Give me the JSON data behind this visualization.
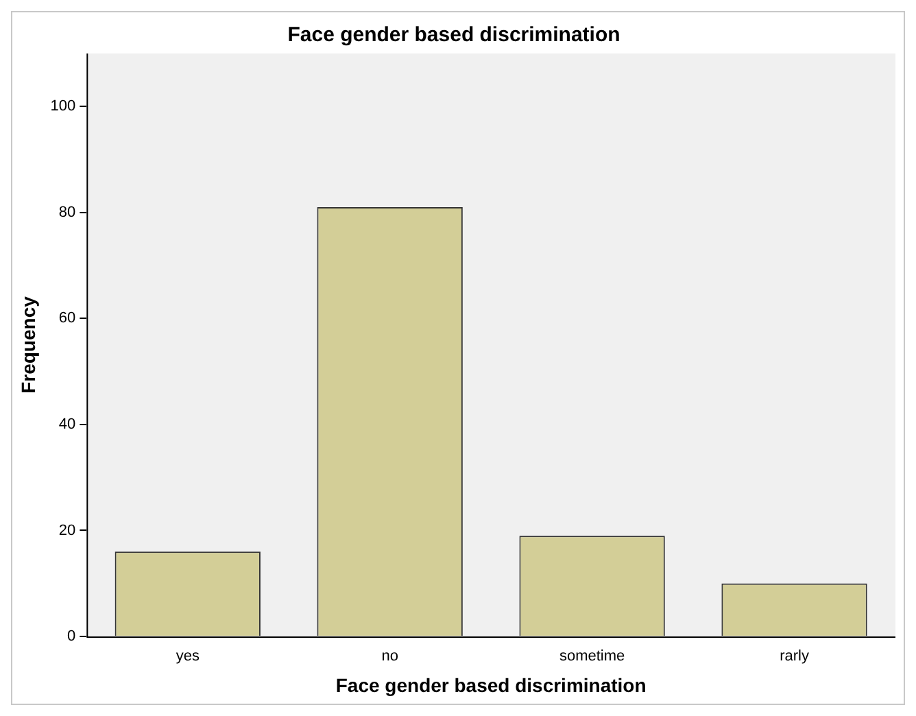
{
  "chart_data": {
    "type": "bar",
    "title": "Face gender based discrimination",
    "xlabel": "Face gender based discrimination",
    "ylabel": "Frequency",
    "categories": [
      "yes",
      "no",
      "sometime",
      "rarly"
    ],
    "values": [
      16,
      81,
      19,
      10
    ],
    "color": "#d3ce97",
    "ylim": [
      0,
      110
    ],
    "yticks": [
      0,
      20,
      40,
      60,
      80,
      100
    ],
    "grid": false,
    "legend": false
  }
}
